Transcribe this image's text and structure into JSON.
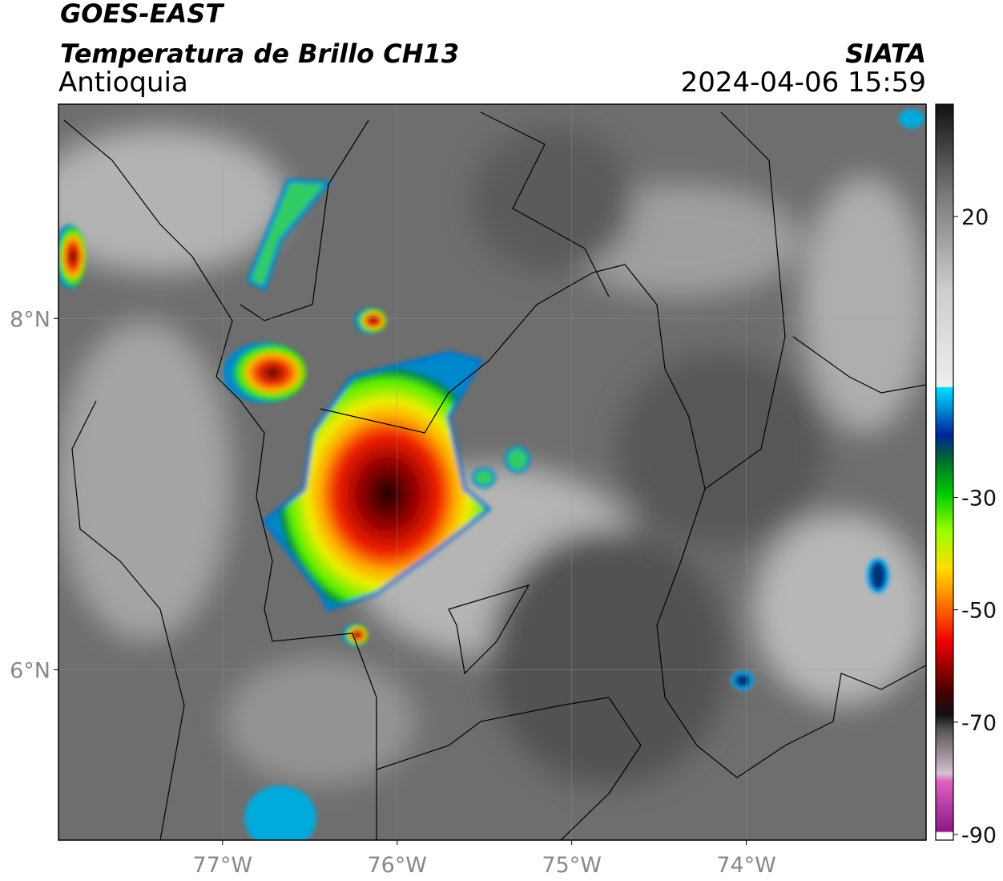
{
  "header": {
    "title": "GOES-EAST",
    "subtitle": "Temperatura de Brillo CH13",
    "region": "Antioquia",
    "source": "SIATA",
    "datetime": "2024-04-06 15:59"
  },
  "map": {
    "lonlim": [
      -77.94,
      -72.97
    ],
    "latlim": [
      5.03,
      9.22
    ],
    "lon_ticks": [
      {
        "value": -77,
        "label": "77°W"
      },
      {
        "value": -76,
        "label": "76°W"
      },
      {
        "value": -75,
        "label": "75°W"
      },
      {
        "value": -74,
        "label": "74°W"
      }
    ],
    "lat_ticks": [
      {
        "value": 8,
        "label": "8°N"
      },
      {
        "value": 6,
        "label": "6°N"
      }
    ]
  },
  "colorbar": {
    "lim": [
      -91,
      40
    ],
    "ticks": [
      20,
      -30,
      -50,
      -70,
      -90
    ]
  }
}
